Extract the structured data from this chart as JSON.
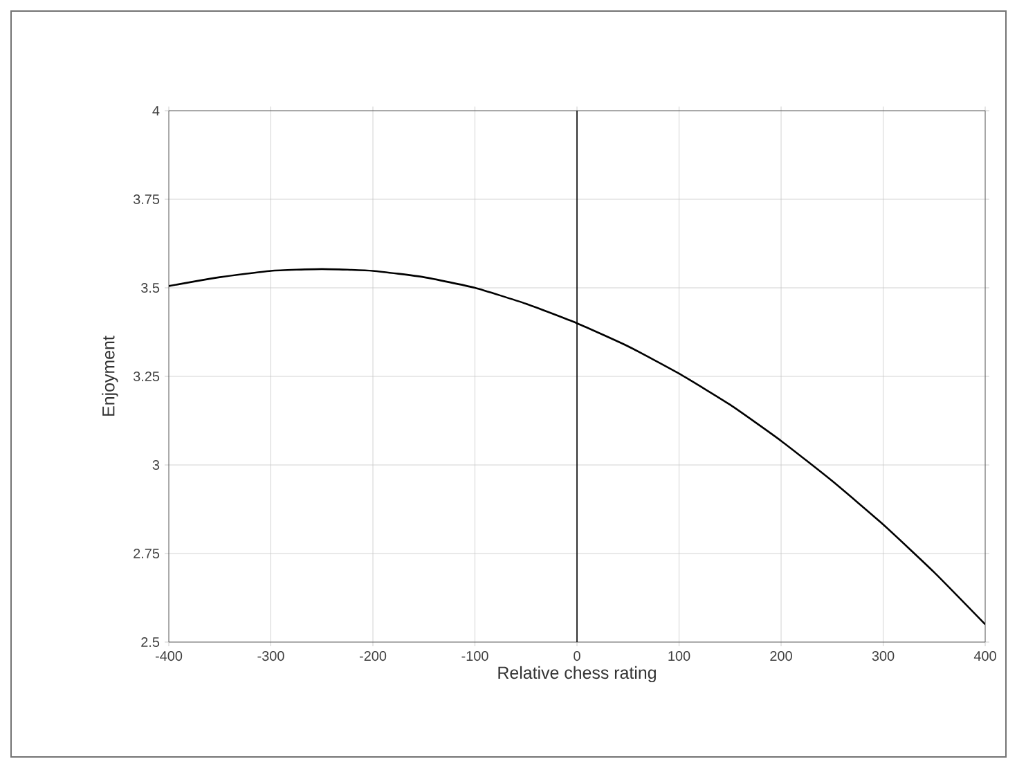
{
  "chart_data": {
    "type": "line",
    "xlabel": "Relative chess rating",
    "ylabel": "Enjoyment",
    "x": [
      -400,
      -350,
      -300,
      -250,
      -200,
      -150,
      -100,
      -50,
      0,
      50,
      100,
      150,
      200,
      250,
      300,
      350,
      400
    ],
    "series": [
      {
        "color": "#000000",
        "values": [
          3.505,
          3.53,
          3.548,
          3.553,
          3.548,
          3.53,
          3.5,
          3.455,
          3.4,
          3.335,
          3.258,
          3.17,
          3.068,
          2.955,
          2.832,
          2.697,
          2.55
        ]
      }
    ],
    "xlim": [
      -400,
      400
    ],
    "xticks": [
      -400,
      -300,
      -200,
      -100,
      0,
      100,
      200,
      300,
      400
    ],
    "ylim": [
      2.5,
      4
    ],
    "yticks": [
      2.5,
      2.75,
      3,
      3.25,
      3.5,
      3.75,
      4
    ],
    "grid": true,
    "ref_lines": [
      {
        "axis": "x",
        "value": 0,
        "color": "#000000"
      }
    ]
  }
}
